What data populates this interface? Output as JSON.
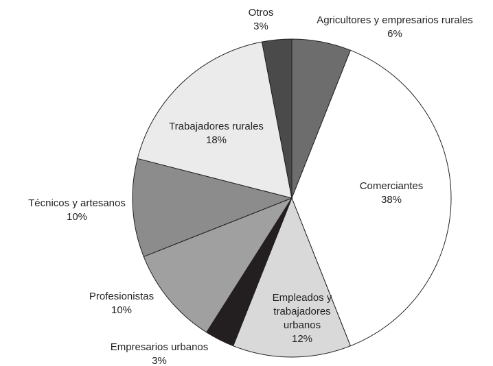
{
  "chart_data": {
    "type": "pie",
    "categories": [
      "Agricultores y empresarios rurales",
      "Comerciantes",
      "Empleados y trabajadores urbanos",
      "Empresarios urbanos",
      "Profesionistas",
      "Técnicos y artesanos",
      "Trabajadores rurales",
      "Otros"
    ],
    "values": [
      6,
      38,
      12,
      3,
      10,
      10,
      18,
      3
    ],
    "value_labels": [
      "6%",
      "38%",
      "12%",
      "3%",
      "10%",
      "10%",
      "18%",
      "3%"
    ],
    "colors": [
      "#6d6d6d",
      "#ffffff",
      "#d9d9d9",
      "#231f20",
      "#a0a0a0",
      "#8c8c8c",
      "#ebebeb",
      "#4a4a4a"
    ]
  }
}
